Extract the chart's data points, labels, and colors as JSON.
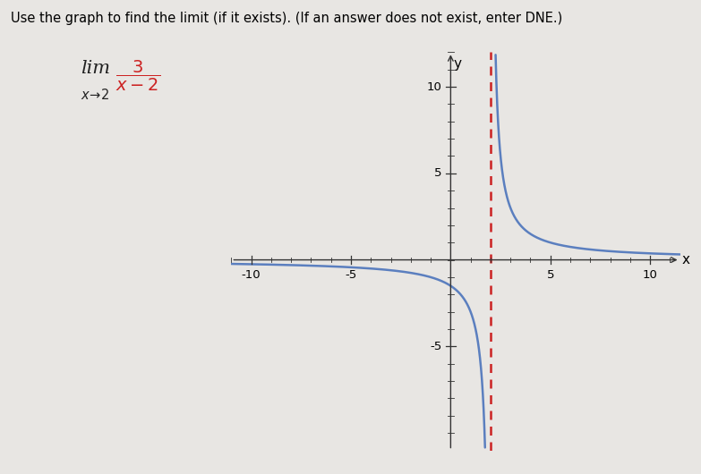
{
  "title_text": "Use the graph to find the limit (if it exists). (If an answer does not exist, enter DNE.)",
  "xlim": [
    -11,
    11.5
  ],
  "ylim": [
    -11,
    12
  ],
  "xtick_labels": [
    "-10",
    "-5",
    "5",
    "10"
  ],
  "xtick_values": [
    -10,
    -5,
    5,
    10
  ],
  "ytick_labels": [
    "10",
    "5",
    "-5"
  ],
  "ytick_values": [
    10,
    5,
    -5
  ],
  "xlabel": "x",
  "ylabel": "y",
  "vertical_asymptote": 2,
  "curve_color": "#5B7FBF",
  "asymptote_color": "#CC2222",
  "background_color": "#E8E6E3",
  "axes_color": "#333333",
  "numerator": 3,
  "denominator_shift": 2,
  "lim_color": "#222222",
  "fraction_color": "#CC2222"
}
